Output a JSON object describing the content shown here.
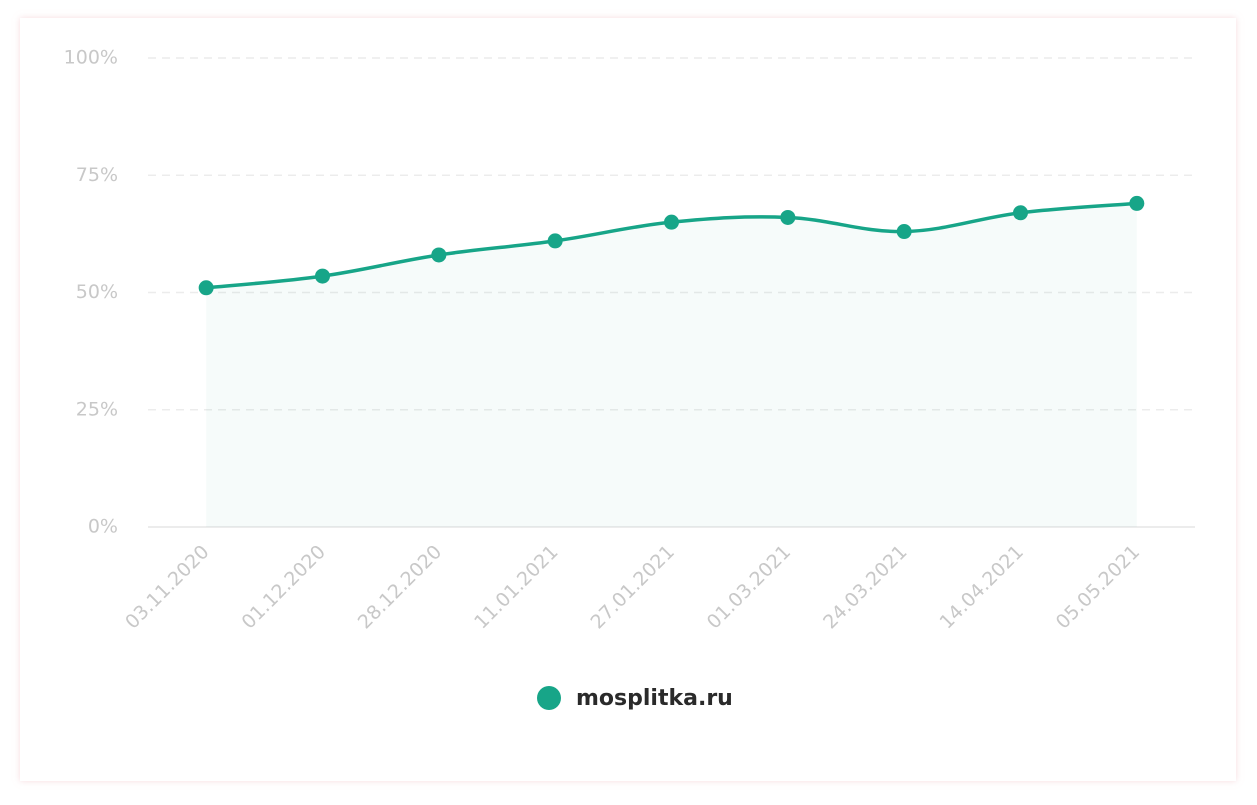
{
  "chart_data": {
    "type": "line",
    "categories": [
      "03.11.2020",
      "01.12.2020",
      "28.12.2020",
      "11.01.2021",
      "27.01.2021",
      "01.03.2021",
      "24.03.2021",
      "14.04.2021",
      "05.05.2021"
    ],
    "series": [
      {
        "name": "mosplitka.ru",
        "color": "#17a588",
        "values": [
          51,
          53.5,
          58,
          61,
          65,
          66,
          63,
          67,
          69
        ]
      }
    ],
    "ylim": [
      0,
      100
    ],
    "yticks": [
      {
        "value": 0,
        "label": "0%"
      },
      {
        "value": 25,
        "label": "25%"
      },
      {
        "value": 50,
        "label": "50%"
      },
      {
        "value": 75,
        "label": "75%"
      },
      {
        "value": 100,
        "label": "100%"
      }
    ],
    "grid": true,
    "area": true,
    "legend": "bottom"
  }
}
